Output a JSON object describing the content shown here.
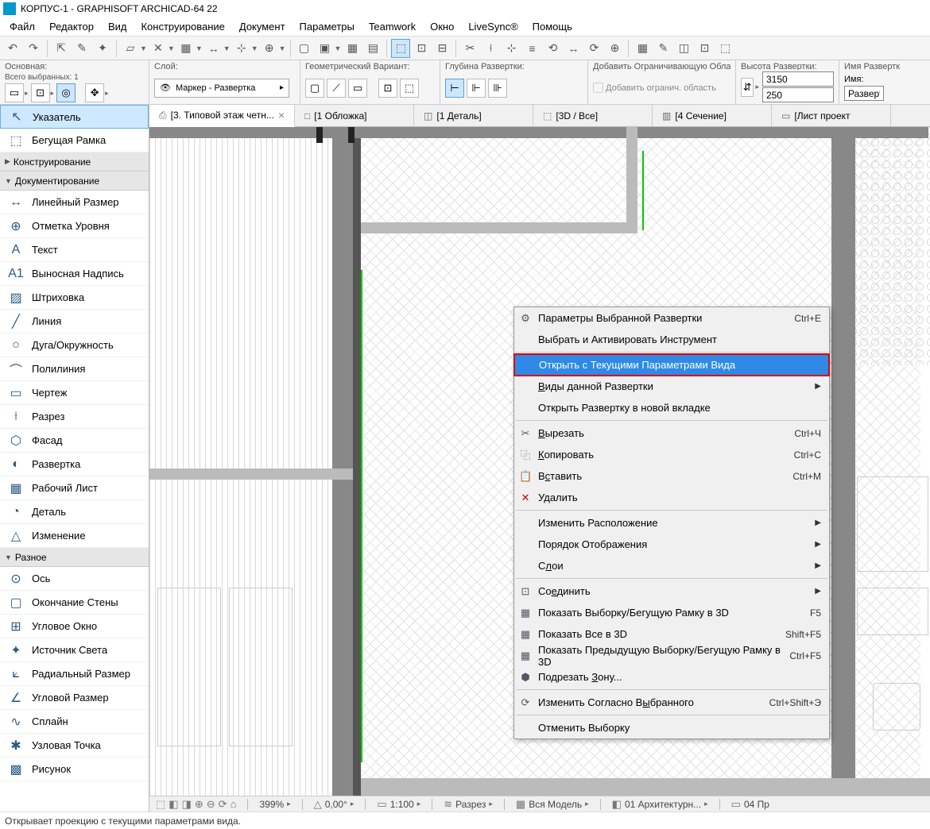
{
  "title": "КОРПУС-1 - GRAPHISOFT ARCHICAD-64 22",
  "menu": [
    "Файл",
    "Редактор",
    "Вид",
    "Конструирование",
    "Документ",
    "Параметры",
    "Teamwork",
    "Окно",
    "LiveSync®",
    "Помощь"
  ],
  "infobar": {
    "main_label": "Основная:",
    "selected_label": "Всего выбранных: 1",
    "layer_label": "Слой:",
    "layer_value": "Маркер - Развертка",
    "geom_label": "Геометрический Вариант:",
    "depth_label": "Глубина Развертки:",
    "limit_label": "Добавить Ограничивающую Область Раз...",
    "limit_check": "Добавить огранич. область",
    "height_label": "Высота Развертки:",
    "height_top": "3150",
    "height_bottom": "250",
    "name_label": "Имя Развертк",
    "name_sublabel": "Имя:",
    "name_value": "Развертк"
  },
  "tabs": [
    {
      "label": "[3. Типовой этаж четн...",
      "icon": "⎙",
      "active": true,
      "closable": true
    },
    {
      "label": "[1 Обложка]",
      "icon": "□"
    },
    {
      "label": "[1 Деталь]",
      "icon": "◫"
    },
    {
      "label": "[3D / Все]",
      "icon": "⬚"
    },
    {
      "label": "[4 Сечение]",
      "icon": "▥"
    },
    {
      "label": "[Лист проект",
      "icon": "▭"
    }
  ],
  "toolbox": {
    "groups": [
      {
        "type": "item",
        "icon": "↖",
        "label": "Указатель",
        "selected": true
      },
      {
        "type": "item",
        "icon": "⬚",
        "label": "Бегущая Рамка"
      },
      {
        "type": "header",
        "label": "Конструирование",
        "arrow": "▶"
      },
      {
        "type": "header",
        "label": "Документирование",
        "arrow": "▼"
      },
      {
        "type": "item",
        "icon": "↔",
        "label": "Линейный Размер"
      },
      {
        "type": "item",
        "icon": "⊕",
        "label": "Отметка Уровня"
      },
      {
        "type": "item",
        "icon": "A",
        "label": "Текст"
      },
      {
        "type": "item",
        "icon": "A1",
        "label": "Выносная Надпись"
      },
      {
        "type": "item",
        "icon": "▨",
        "label": "Штриховка"
      },
      {
        "type": "item",
        "icon": "╱",
        "label": "Линия"
      },
      {
        "type": "item",
        "icon": "○",
        "label": "Дуга/Окружность"
      },
      {
        "type": "item",
        "icon": "⌒",
        "label": "Полилиния"
      },
      {
        "type": "item",
        "icon": "▭",
        "label": "Чертеж"
      },
      {
        "type": "item",
        "icon": "⟊",
        "label": "Разрез"
      },
      {
        "type": "item",
        "icon": "⬡",
        "label": "Фасад"
      },
      {
        "type": "item",
        "icon": "◐",
        "label": "Развертка"
      },
      {
        "type": "item",
        "icon": "▦",
        "label": "Рабочий Лист"
      },
      {
        "type": "item",
        "icon": "◔",
        "label": "Деталь"
      },
      {
        "type": "item",
        "icon": "△",
        "label": "Изменение"
      },
      {
        "type": "header",
        "label": "Разное",
        "arrow": "▼"
      },
      {
        "type": "item",
        "icon": "⊙",
        "label": "Ось"
      },
      {
        "type": "item",
        "icon": "▢",
        "label": "Окончание Стены"
      },
      {
        "type": "item",
        "icon": "⊞",
        "label": "Угловое Окно"
      },
      {
        "type": "item",
        "icon": "✦",
        "label": "Источник Света"
      },
      {
        "type": "item",
        "icon": "⟀",
        "label": "Радиальный Размер"
      },
      {
        "type": "item",
        "icon": "∠",
        "label": "Угловой Размер"
      },
      {
        "type": "item",
        "icon": "∿",
        "label": "Сплайн"
      },
      {
        "type": "item",
        "icon": "✱",
        "label": "Узловая Точка"
      },
      {
        "type": "item",
        "icon": "▩",
        "label": "Рисунок"
      }
    ]
  },
  "context_menu": [
    {
      "icon": "⚙",
      "label": "Параметры Выбранной Развертки",
      "shortcut": "Ctrl+E"
    },
    {
      "label": "Выбрать и Активировать Инструмент"
    },
    {
      "sep": true
    },
    {
      "label": "Открыть с Текущими Параметрами Вида",
      "highlight": true
    },
    {
      "label": "Виды данной Развертки",
      "submenu": true,
      "underline": "В"
    },
    {
      "label": "Открыть Развертку в новой вкладке"
    },
    {
      "sep": true
    },
    {
      "icon": "✂",
      "label": "Вырезать",
      "shortcut": "Ctrl+Ч",
      "underline": "В"
    },
    {
      "icon": "⿻",
      "label": "Копировать",
      "shortcut": "Ctrl+C",
      "underline": "К"
    },
    {
      "icon": "📋",
      "label": "Вставить",
      "shortcut": "Ctrl+M",
      "underline": "с"
    },
    {
      "icon": "✕",
      "label": "Удалить",
      "iconcolor": "#c00"
    },
    {
      "sep": true
    },
    {
      "label": "Изменить Расположение",
      "submenu": true
    },
    {
      "label": "Порядок Отображения",
      "submenu": true
    },
    {
      "label": "Слои",
      "submenu": true,
      "underline": "л"
    },
    {
      "sep": true
    },
    {
      "icon": "⊡",
      "label": "Соединить",
      "submenu": true,
      "underline": "е"
    },
    {
      "icon": "▦",
      "label": "Показать Выборку/Бегущую Рамку в 3D",
      "shortcut": "F5"
    },
    {
      "icon": "▦",
      "label": "Показать Все в 3D",
      "shortcut": "Shift+F5"
    },
    {
      "icon": "▦",
      "label": "Показать Предыдущую Выборку/Бегущую Рамку в 3D",
      "shortcut": "Ctrl+F5"
    },
    {
      "icon": "⬢",
      "label": "Подрезать Зону...",
      "underline": "З"
    },
    {
      "sep": true
    },
    {
      "icon": "⟳",
      "label": "Изменить Согласно Выбранного",
      "shortcut": "Ctrl+Shift+Э",
      "underline": "ы"
    },
    {
      "sep": true
    },
    {
      "label": "Отменить Выборку"
    }
  ],
  "ws_status": {
    "zoom": "399%",
    "angle": "0,00°",
    "scale": "1:100",
    "view1": "Разрез",
    "view2": "Вся Модель",
    "view3": "01 Архитектурн...",
    "view4": "04 Пр"
  },
  "statusbar": "Открывает проекцию с текущими параметрами вида."
}
